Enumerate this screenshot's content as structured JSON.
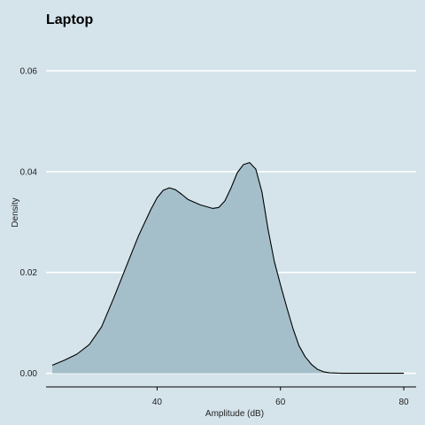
{
  "chart_data": {
    "type": "area",
    "title": "Laptop",
    "xlabel": "Amplitude (dB)",
    "ylabel": "Density",
    "xlim": [
      22,
      82
    ],
    "ylim": [
      -0.0027,
      0.0635
    ],
    "x_ticks": [
      40,
      60,
      80
    ],
    "x_tick_labels": [
      "40",
      "60",
      "80"
    ],
    "y_ticks": [
      0.0,
      0.02,
      0.04,
      0.06
    ],
    "y_tick_labels": [
      "0.00",
      "0.02",
      "0.04",
      "0.06"
    ],
    "grid": "horizontal",
    "legend": "none",
    "series": [
      {
        "x": [
          23,
          25,
          27,
          29,
          31,
          33,
          35,
          37,
          39,
          40,
          41,
          42,
          43,
          44,
          45,
          47,
          49,
          50,
          51,
          52,
          53,
          54,
          55,
          56,
          57,
          58,
          59,
          60,
          61,
          62,
          63,
          64,
          65,
          66,
          67,
          68,
          69,
          70,
          72,
          75,
          80
        ],
        "y": [
          0.0016,
          0.0026,
          0.0038,
          0.0057,
          0.0092,
          0.015,
          0.0212,
          0.0273,
          0.0325,
          0.0348,
          0.0363,
          0.0368,
          0.0364,
          0.0355,
          0.0345,
          0.0334,
          0.0327,
          0.0329,
          0.0342,
          0.0368,
          0.0398,
          0.0414,
          0.0418,
          0.0405,
          0.036,
          0.0285,
          0.0222,
          0.0176,
          0.0132,
          0.009,
          0.0055,
          0.0033,
          0.0018,
          0.0008,
          0.0003,
          0.0001,
          5e-05,
          0.0,
          0.0,
          0.0,
          0.0
        ]
      }
    ]
  },
  "colors": {
    "background": "#d5e4eb",
    "fill": "#a4bfca",
    "line": "#000000",
    "grid": "#ffffff"
  }
}
